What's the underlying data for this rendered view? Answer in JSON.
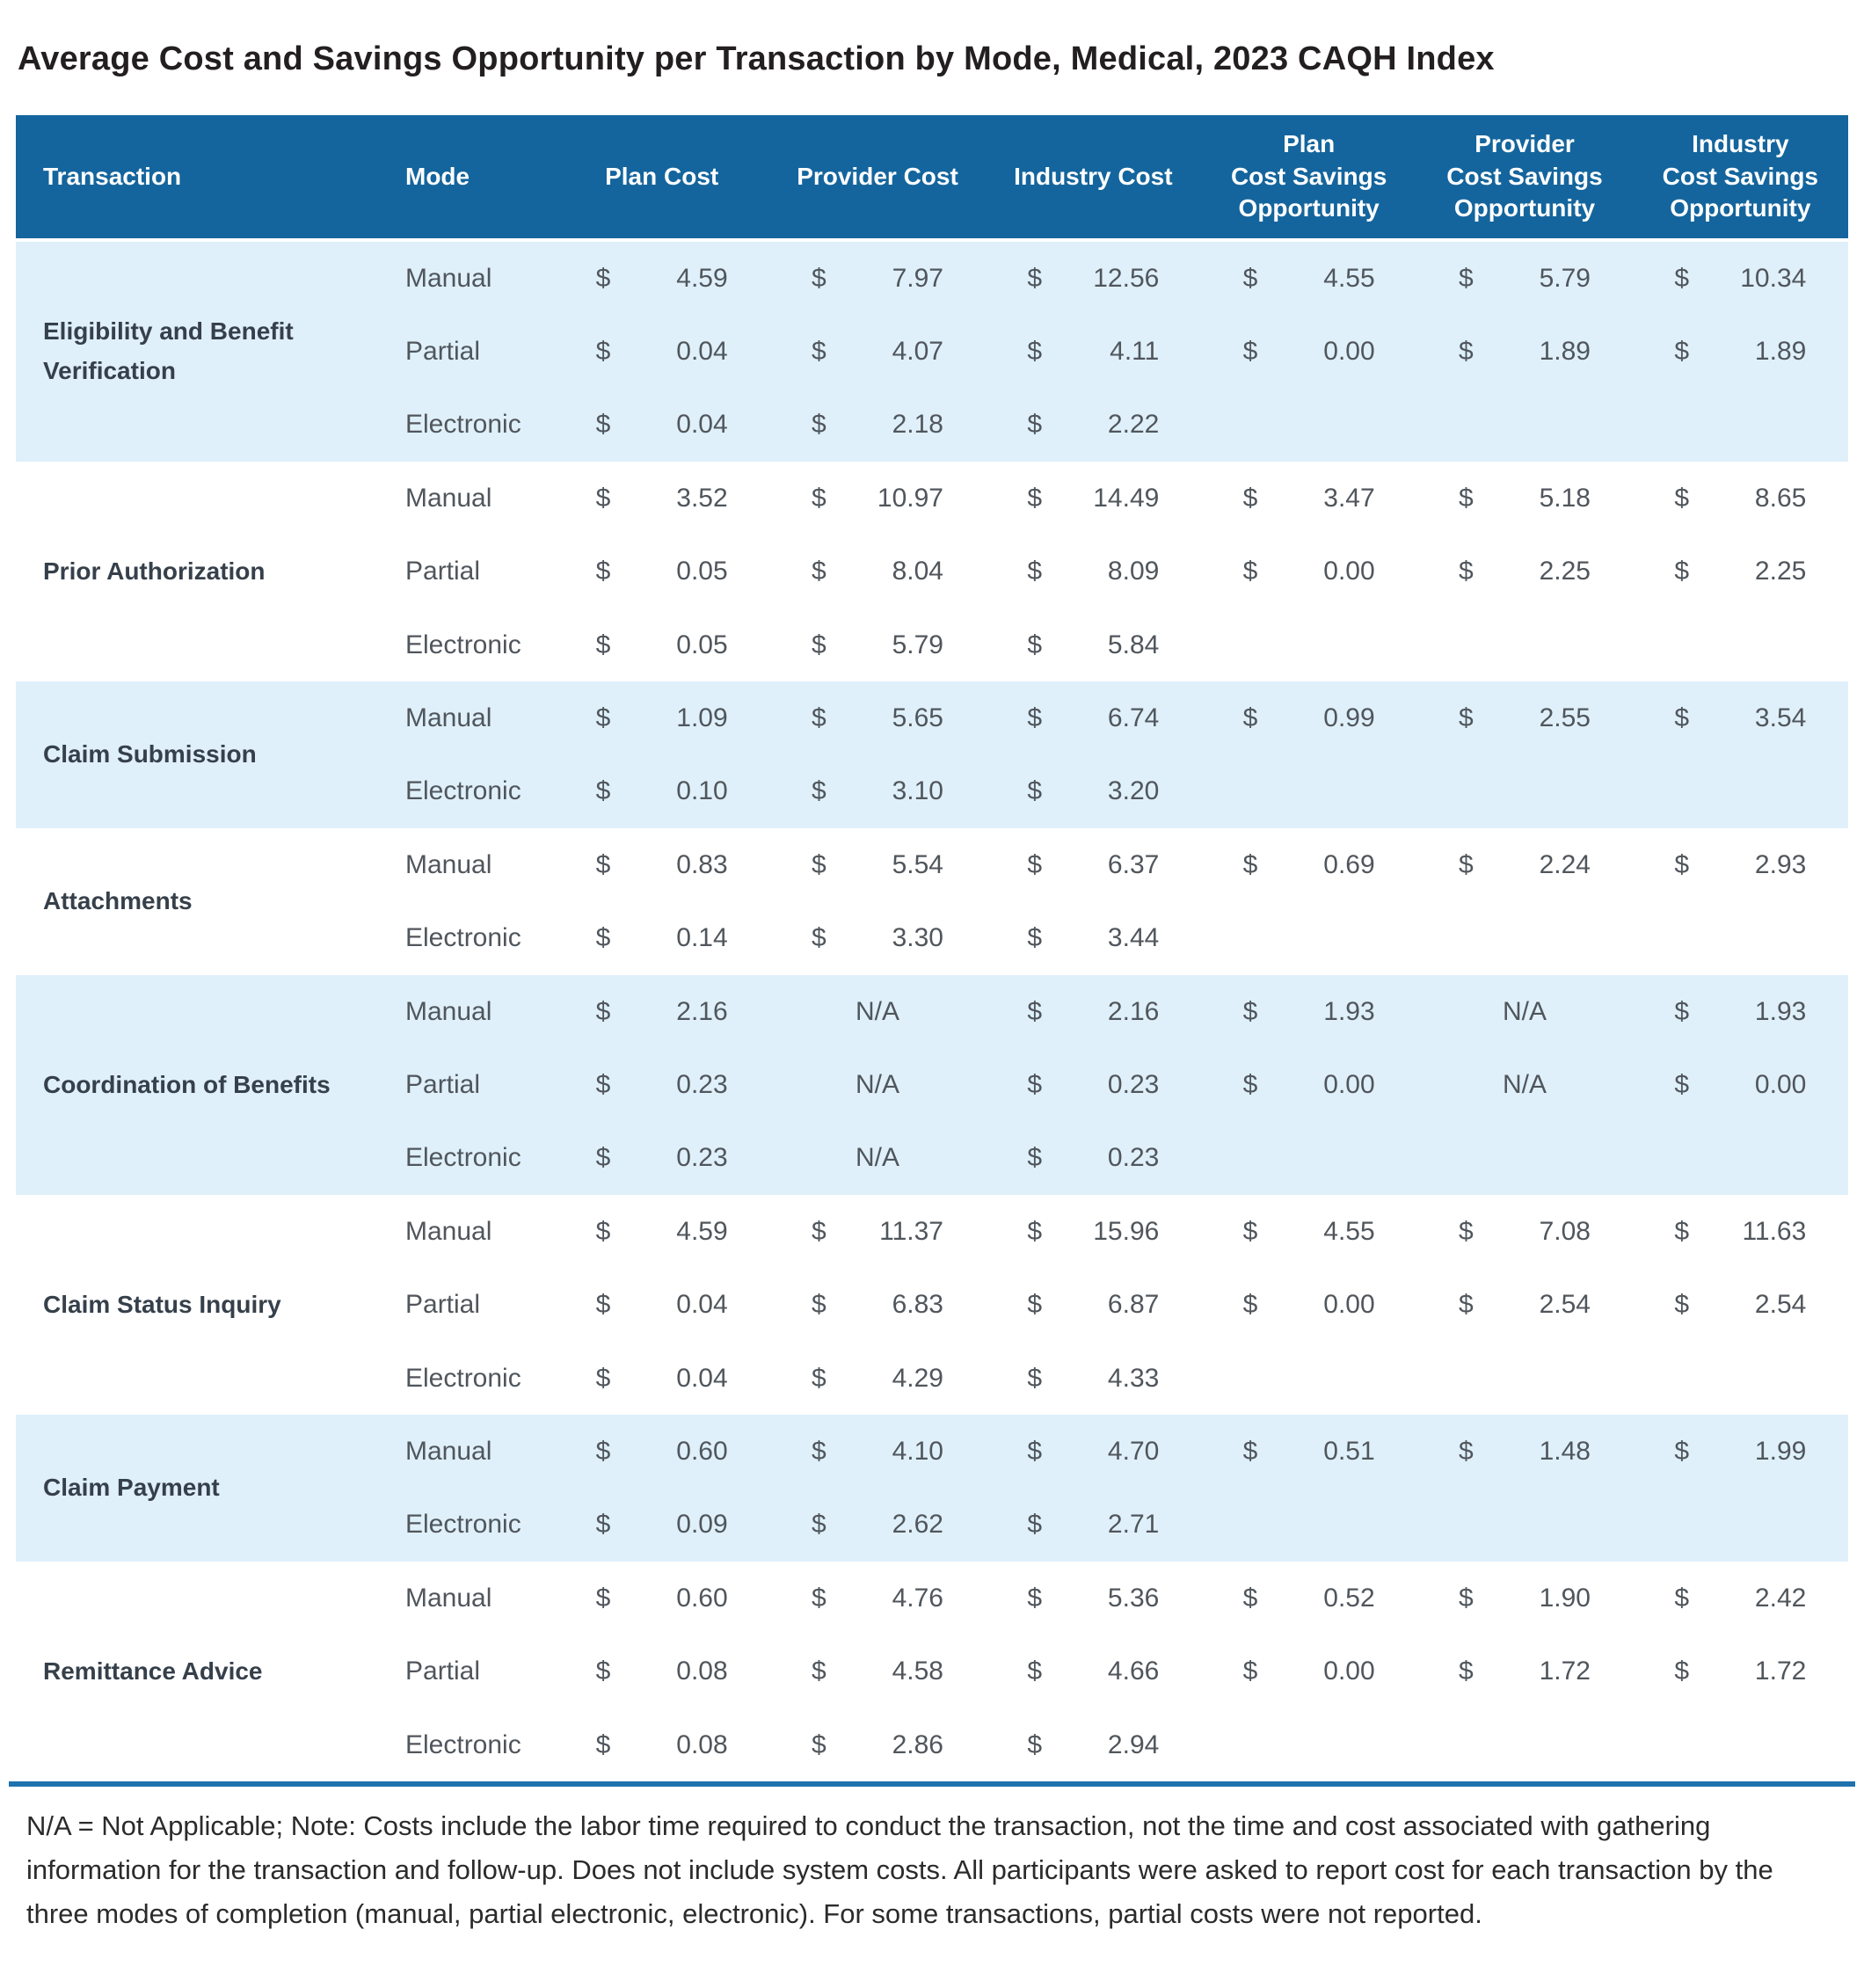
{
  "footnote": "N/A = Not Applicable; Note: Costs include the labor time required to conduct the transaction, not the time and cost associated with gathering information for the transaction and follow-up. Does not include system costs. All participants were asked to report cost for each transaction by the three modes of completion (manual, partial electronic, electronic). For some transactions, partial costs were not reported.",
  "colors": {
    "header_bg": "#14659D",
    "shaded_row_bg": "#DFF0FA",
    "rule": "#1E72AD",
    "header_text": "#FFFFFF",
    "body_text": "#50565C",
    "transaction_text": "#36404B"
  },
  "chart_data": {
    "type": "table",
    "title": "Average Cost and Savings Opportunity per Transaction by Mode, Medical, 2023 CAQH Index",
    "currency_symbol": "$",
    "na_label": "N/A",
    "columns": [
      {
        "key": "transaction",
        "label_lines": [
          "Transaction"
        ]
      },
      {
        "key": "mode",
        "label_lines": [
          "Mode"
        ]
      },
      {
        "key": "plan_cost",
        "label_lines": [
          "Plan Cost"
        ]
      },
      {
        "key": "provider_cost",
        "label_lines": [
          "Provider Cost"
        ]
      },
      {
        "key": "industry_cost",
        "label_lines": [
          "Industry Cost"
        ]
      },
      {
        "key": "plan_cost_savings_opportunity",
        "label_lines": [
          "Plan",
          "Cost Savings",
          "Opportunity"
        ]
      },
      {
        "key": "provider_cost_savings_opportunity",
        "label_lines": [
          "Provider",
          "Cost Savings",
          "Opportunity"
        ]
      },
      {
        "key": "industry_cost_savings_opportunity",
        "label_lines": [
          "Industry",
          "Cost Savings",
          "Opportunity"
        ]
      }
    ],
    "groups": [
      {
        "transaction": "Eligibility and Benefit Verification",
        "shaded": true,
        "rows": [
          {
            "mode": "Manual",
            "values": [
              "4.59",
              "7.97",
              "12.56",
              "4.55",
              "5.79",
              "10.34"
            ]
          },
          {
            "mode": "Partial",
            "values": [
              "0.04",
              "4.07",
              "4.11",
              "0.00",
              "1.89",
              "1.89"
            ]
          },
          {
            "mode": "Electronic",
            "values": [
              "0.04",
              "2.18",
              "2.22",
              "",
              "",
              ""
            ]
          }
        ]
      },
      {
        "transaction": "Prior Authorization",
        "shaded": false,
        "rows": [
          {
            "mode": "Manual",
            "values": [
              "3.52",
              "10.97",
              "14.49",
              "3.47",
              "5.18",
              "8.65"
            ]
          },
          {
            "mode": "Partial",
            "values": [
              "0.05",
              "8.04",
              "8.09",
              "0.00",
              "2.25",
              "2.25"
            ]
          },
          {
            "mode": "Electronic",
            "values": [
              "0.05",
              "5.79",
              "5.84",
              "",
              "",
              ""
            ]
          }
        ]
      },
      {
        "transaction": "Claim Submission",
        "shaded": true,
        "rows": [
          {
            "mode": "Manual",
            "values": [
              "1.09",
              "5.65",
              "6.74",
              "0.99",
              "2.55",
              "3.54"
            ]
          },
          {
            "mode": "Electronic",
            "values": [
              "0.10",
              "3.10",
              "3.20",
              "",
              "",
              ""
            ]
          }
        ]
      },
      {
        "transaction": "Attachments",
        "shaded": false,
        "rows": [
          {
            "mode": "Manual",
            "values": [
              "0.83",
              "5.54",
              "6.37",
              "0.69",
              "2.24",
              "2.93"
            ]
          },
          {
            "mode": "Electronic",
            "values": [
              "0.14",
              "3.30",
              "3.44",
              "",
              "",
              ""
            ]
          }
        ]
      },
      {
        "transaction": "Coordination of Benefits",
        "shaded": true,
        "rows": [
          {
            "mode": "Manual",
            "values": [
              "2.16",
              "N/A",
              "2.16",
              "1.93",
              "N/A",
              "1.93"
            ]
          },
          {
            "mode": "Partial",
            "values": [
              "0.23",
              "N/A",
              "0.23",
              "0.00",
              "N/A",
              "0.00"
            ]
          },
          {
            "mode": "Electronic",
            "values": [
              "0.23",
              "N/A",
              "0.23",
              "",
              "",
              ""
            ]
          }
        ]
      },
      {
        "transaction": "Claim Status Inquiry",
        "shaded": false,
        "rows": [
          {
            "mode": "Manual",
            "values": [
              "4.59",
              "11.37",
              "15.96",
              "4.55",
              "7.08",
              "11.63"
            ]
          },
          {
            "mode": "Partial",
            "values": [
              "0.04",
              "6.83",
              "6.87",
              "0.00",
              "2.54",
              "2.54"
            ]
          },
          {
            "mode": "Electronic",
            "values": [
              "0.04",
              "4.29",
              "4.33",
              "",
              "",
              ""
            ]
          }
        ]
      },
      {
        "transaction": "Claim Payment",
        "shaded": true,
        "rows": [
          {
            "mode": "Manual",
            "values": [
              "0.60",
              "4.10",
              "4.70",
              "0.51",
              "1.48",
              "1.99"
            ]
          },
          {
            "mode": "Electronic",
            "values": [
              "0.09",
              "2.62",
              "2.71",
              "",
              "",
              ""
            ]
          }
        ]
      },
      {
        "transaction": "Remittance Advice",
        "shaded": false,
        "rows": [
          {
            "mode": "Manual",
            "values": [
              "0.60",
              "4.76",
              "5.36",
              "0.52",
              "1.90",
              "2.42"
            ]
          },
          {
            "mode": "Partial",
            "values": [
              "0.08",
              "4.58",
              "4.66",
              "0.00",
              "1.72",
              "1.72"
            ]
          },
          {
            "mode": "Electronic",
            "values": [
              "0.08",
              "2.86",
              "2.94",
              "",
              "",
              ""
            ]
          }
        ]
      }
    ]
  }
}
